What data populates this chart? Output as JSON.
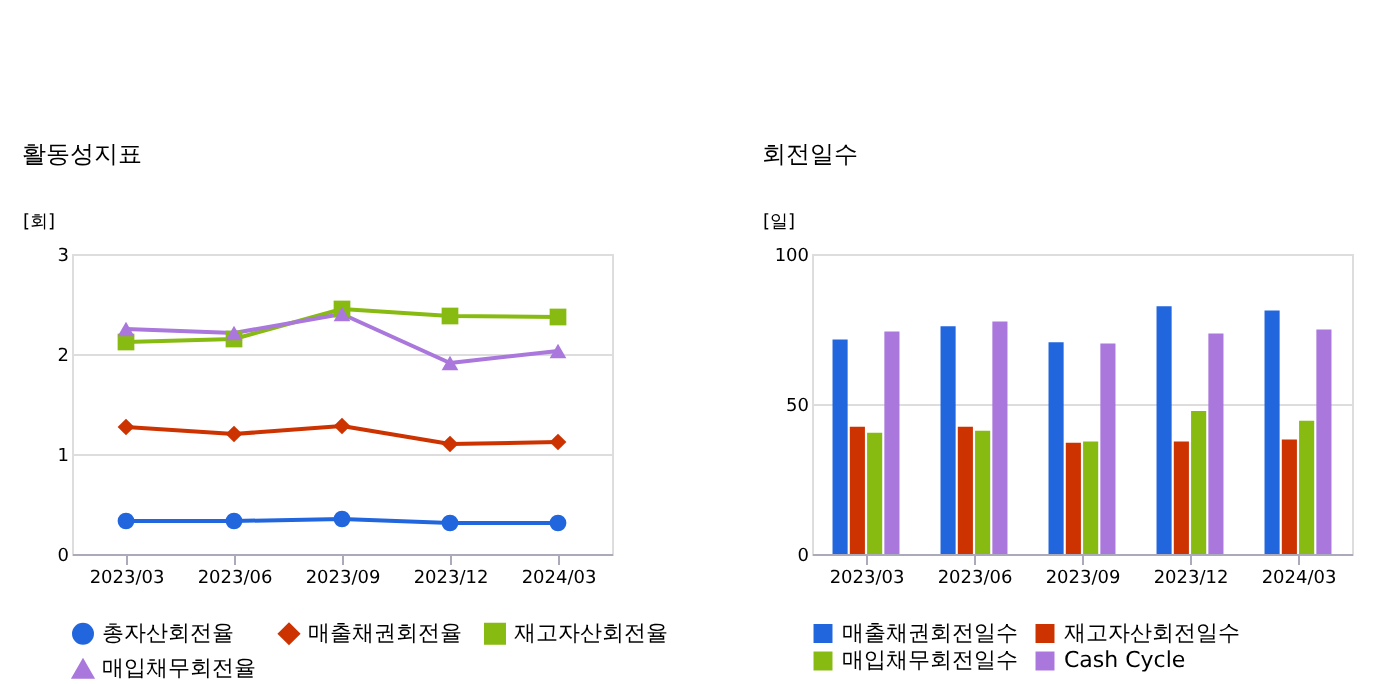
{
  "chart_data": [
    {
      "type": "line",
      "title": "활동성지표",
      "ylabel": "[회]",
      "categories": [
        "2023/03",
        "2023/06",
        "2023/09",
        "2023/12",
        "2024/03"
      ],
      "ylim": [
        0,
        3
      ],
      "yticks": [
        0,
        1,
        2,
        3
      ],
      "grid": "y",
      "legend": "bottom",
      "series": [
        {
          "name": "총자산회전율",
          "color": "#2266dd",
          "marker": "circle",
          "values": [
            0.33,
            0.33,
            0.35,
            0.31,
            0.31
          ]
        },
        {
          "name": "매출채권회전율",
          "color": "#cc3300",
          "marker": "diamond",
          "values": [
            1.27,
            1.2,
            1.28,
            1.1,
            1.12
          ]
        },
        {
          "name": "재고자산회전율",
          "color": "#88bb11",
          "marker": "square",
          "values": [
            2.12,
            2.15,
            2.45,
            2.38,
            2.37
          ]
        },
        {
          "name": "매입채무회전율",
          "color": "#aa77dd",
          "marker": "triangle",
          "values": [
            2.25,
            2.21,
            2.4,
            1.91,
            2.03
          ]
        }
      ]
    },
    {
      "type": "bar",
      "title": "회전일수",
      "ylabel": "[일]",
      "categories": [
        "2023/03",
        "2023/06",
        "2023/09",
        "2023/12",
        "2024/03"
      ],
      "ylim": [
        0,
        100
      ],
      "yticks": [
        0,
        50,
        100
      ],
      "grid": "y",
      "legend": "bottom",
      "series": [
        {
          "name": "매출채권회전일수",
          "color": "#2266dd",
          "values": [
            71.5,
            75.9,
            70.6,
            82.6,
            81.2
          ]
        },
        {
          "name": "재고자산회전일수",
          "color": "#cc3300",
          "values": [
            42.4,
            42.4,
            37.1,
            37.5,
            38.2
          ]
        },
        {
          "name": "매입채무회전일수",
          "color": "#88bb11",
          "values": [
            40.4,
            41.1,
            37.5,
            47.7,
            44.4
          ]
        },
        {
          "name": "Cash Cycle",
          "color": "#aa77dd",
          "values": [
            74.2,
            77.5,
            70.2,
            73.5,
            74.8
          ]
        }
      ]
    }
  ]
}
